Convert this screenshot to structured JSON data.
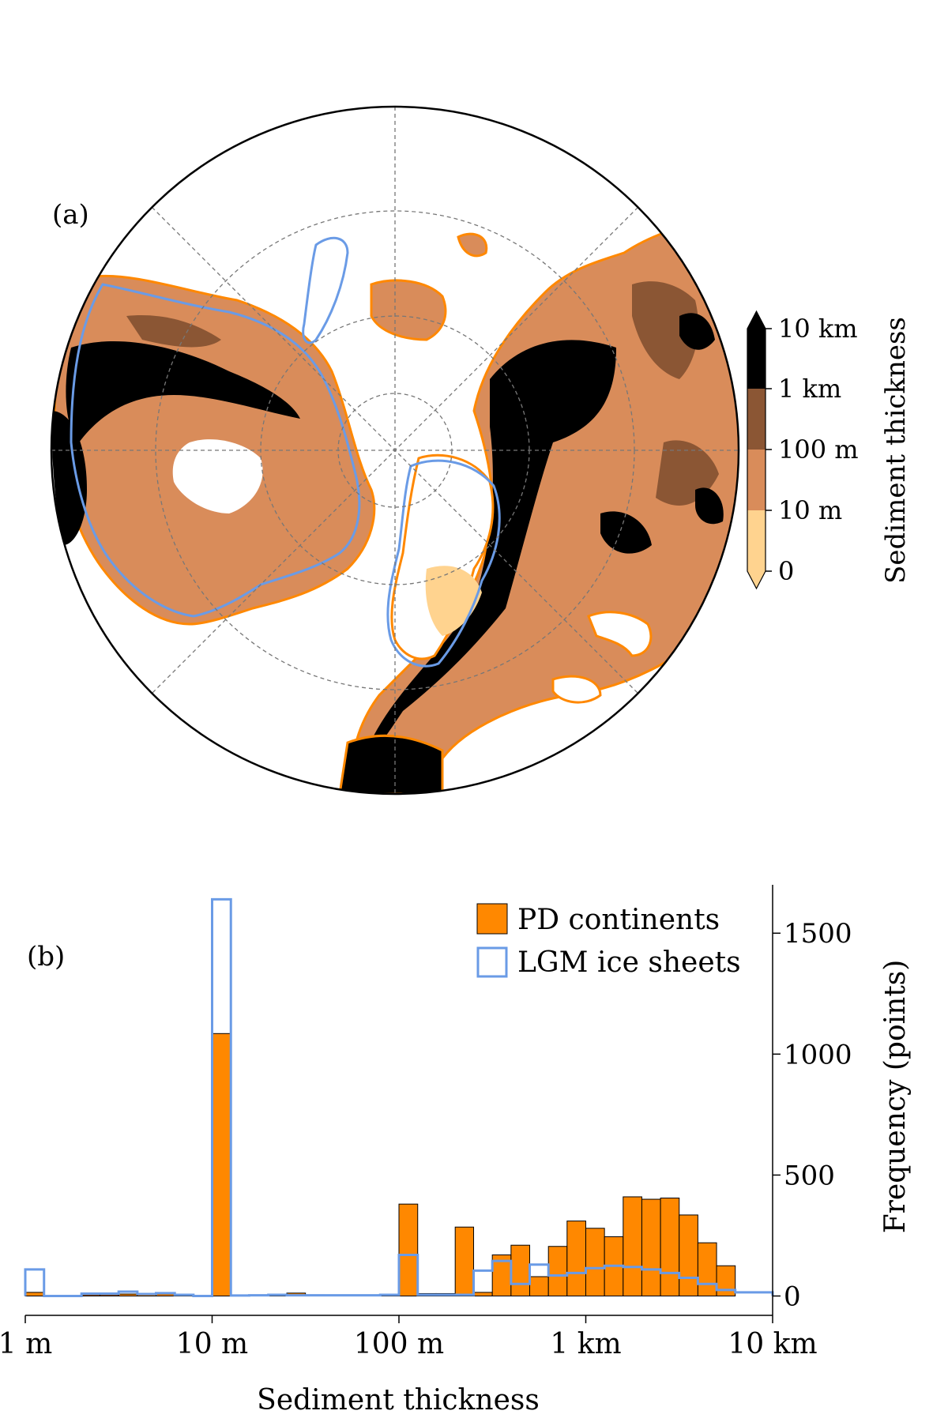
{
  "figure": {
    "panel_a_label": "(a)",
    "panel_b_label": "(b)"
  },
  "colors": {
    "c0": "#ffd38f",
    "c1": "#d98c5a",
    "c2": "#8b5634",
    "c3": "#000000",
    "pd": "#ff8800",
    "lgm": "#6a9be6",
    "grid": "#777777"
  },
  "chart_data": [
    {
      "type": "heatmap",
      "colorbar": {
        "label": "Sediment thickness",
        "ticks": [
          "0",
          "10 m",
          "100 m",
          "1 km",
          "10 km"
        ],
        "bins": [
          "0–10 m",
          "10–100 m",
          "100 m–1 km",
          "1–10 km"
        ],
        "extend": "both"
      },
      "outlines": [
        "PD continents",
        "LGM ice sheets"
      ]
    },
    {
      "type": "bar",
      "xlabel": "Sediment thickness",
      "ylabel": "Frequency (points)",
      "xscale": "log",
      "xlim": [
        1,
        10000
      ],
      "ylim": [
        -80,
        1700
      ],
      "x_ticks": [
        {
          "v": 1,
          "label": "1 m"
        },
        {
          "v": 10,
          "label": "10 m"
        },
        {
          "v": 100,
          "label": "100 m"
        },
        {
          "v": 1000,
          "label": "1 km"
        },
        {
          "v": 10000,
          "label": "10 km"
        }
      ],
      "y_ticks": [
        0,
        500,
        1000,
        1500
      ],
      "legend": {
        "position": "top-right"
      },
      "bin_edges": [
        1,
        1.26,
        1.58,
        2,
        2.51,
        3.16,
        3.98,
        5.01,
        6.31,
        7.94,
        10,
        12.6,
        15.8,
        20,
        25.1,
        31.6,
        39.8,
        50.1,
        63.1,
        79.4,
        100,
        126,
        158,
        200,
        251,
        316,
        398,
        501,
        631,
        794,
        1000,
        1259,
        1585,
        1995,
        2512,
        3162,
        3981,
        5012,
        6310,
        7943,
        10000
      ],
      "series": [
        {
          "name": "PD continents",
          "style": "filled",
          "values": [
            15,
            0,
            0,
            5,
            5,
            8,
            5,
            8,
            5,
            0,
            1085,
            3,
            5,
            5,
            12,
            5,
            3,
            3,
            3,
            5,
            380,
            10,
            10,
            285,
            15,
            170,
            210,
            80,
            205,
            310,
            280,
            245,
            410,
            400,
            405,
            335,
            220,
            125,
            0,
            0
          ]
        },
        {
          "name": "LGM ice sheets",
          "style": "outline",
          "values": [
            110,
            0,
            0,
            10,
            10,
            18,
            8,
            12,
            5,
            0,
            1640,
            2,
            3,
            5,
            3,
            3,
            3,
            3,
            3,
            5,
            170,
            5,
            5,
            5,
            105,
            145,
            50,
            130,
            85,
            95,
            115,
            125,
            120,
            110,
            95,
            75,
            50,
            25,
            15,
            15
          ]
        }
      ]
    }
  ]
}
